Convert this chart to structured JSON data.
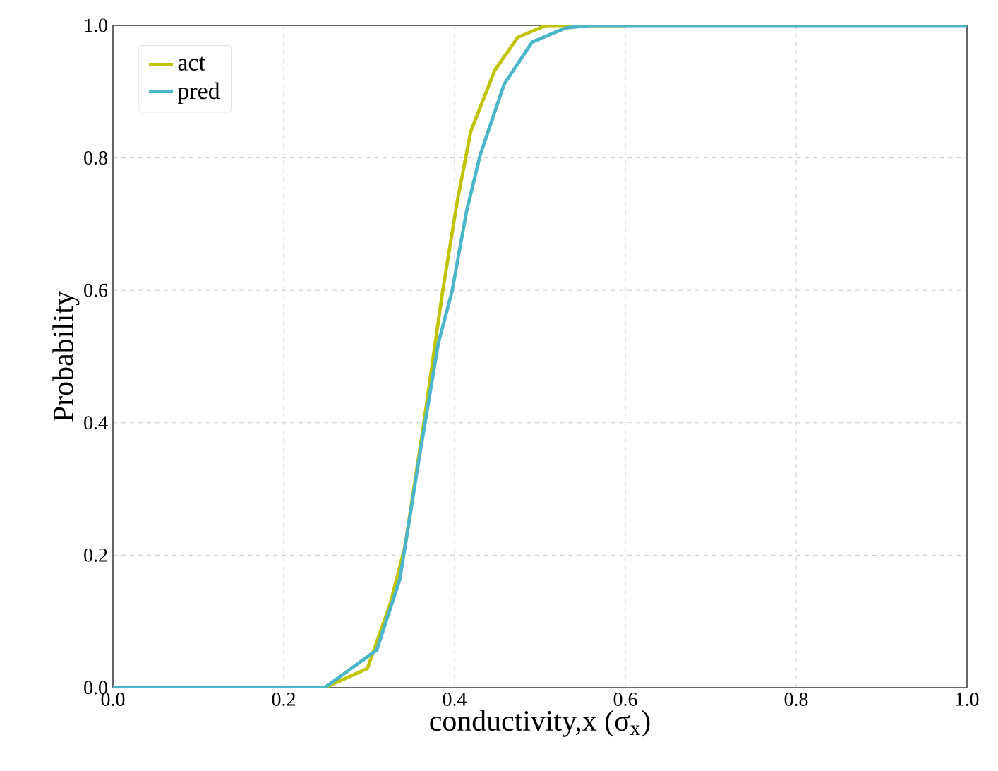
{
  "chart_data": {
    "type": "line",
    "xlabel": "conductivity,x (σ$_{x}$)",
    "ylabel": "Probability",
    "xlim": [
      0,
      1
    ],
    "ylim": [
      0,
      1
    ],
    "xticks": [
      {
        "value": 0,
        "label": "0.0"
      },
      {
        "value": 0.2,
        "label": "0.2"
      },
      {
        "value": 0.4,
        "label": "0.4"
      },
      {
        "value": 0.6,
        "label": "0.6"
      },
      {
        "value": 0.8,
        "label": "0.8"
      },
      {
        "value": 1,
        "label": "1.0"
      }
    ],
    "yticks": [
      {
        "value": 0,
        "label": "0.0"
      },
      {
        "value": 0.2,
        "label": "0.2"
      },
      {
        "value": 0.4,
        "label": "0.4"
      },
      {
        "value": 0.6,
        "label": "0.6"
      },
      {
        "value": 0.8,
        "label": "0.8"
      },
      {
        "value": 1,
        "label": "1.0"
      }
    ],
    "grid": true,
    "legend": "top left",
    "marker": "none",
    "line_style": "solid",
    "series": [
      {
        "name": "act",
        "color": "#bfc400",
        "x": [
          0,
          0.2,
          0.248,
          0.298,
          0.325,
          0.342,
          0.364,
          0.386,
          0.403,
          0.419,
          0.447,
          0.474,
          0.507,
          0.6
        ],
        "values": [
          0,
          0,
          0,
          0.029,
          0.128,
          0.213,
          0.399,
          0.598,
          0.733,
          0.84,
          0.932,
          0.982,
          1,
          1
        ]
      },
      {
        "name": "pred",
        "color": "#4bb5c9",
        "x": [
          0,
          0.2,
          0.248,
          0.309,
          0.336,
          0.358,
          0.381,
          0.397,
          0.414,
          0.43,
          0.458,
          0.491,
          0.53,
          0.56,
          0.8,
          1
        ],
        "values": [
          0,
          0,
          0,
          0.057,
          0.164,
          0.342,
          0.52,
          0.598,
          0.719,
          0.804,
          0.911,
          0.975,
          0.996,
          1,
          1,
          1
        ]
      }
    ]
  }
}
